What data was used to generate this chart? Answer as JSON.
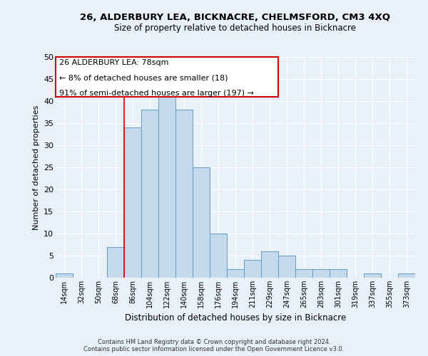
{
  "title": "26, ALDERBURY LEA, BICKNACRE, CHELMSFORD, CM3 4XQ",
  "subtitle": "Size of property relative to detached houses in Bicknacre",
  "xlabel": "Distribution of detached houses by size in Bicknacre",
  "ylabel": "Number of detached properties",
  "categories": [
    "14sqm",
    "32sqm",
    "50sqm",
    "68sqm",
    "86sqm",
    "104sqm",
    "122sqm",
    "140sqm",
    "158sqm",
    "176sqm",
    "194sqm",
    "211sqm",
    "229sqm",
    "247sqm",
    "265sqm",
    "283sqm",
    "301sqm",
    "319sqm",
    "337sqm",
    "355sqm",
    "373sqm"
  ],
  "values": [
    1,
    0,
    0,
    7,
    34,
    38,
    41,
    38,
    25,
    10,
    2,
    4,
    6,
    5,
    2,
    2,
    2,
    0,
    1,
    0,
    1
  ],
  "bar_color": "#c5d9ec",
  "bar_edge_color": "#6699bb",
  "property_line_index": 4,
  "property_line_color": "#cc0000",
  "annotation_line1": "26 ALDERBURY LEA: 78sqm",
  "annotation_line2": "← 8% of detached houses are smaller (18)",
  "annotation_line3": "91% of semi-detached houses are larger (197) →",
  "annotation_box_color": "#cc0000",
  "background_color": "#e8f0f8",
  "plot_bg_color": "#e8f0f8",
  "footer_line1": "Contains HM Land Registry data © Crown copyright and database right 2024.",
  "footer_line2": "Contains public sector information licensed under the Open Government Licence v3.0.",
  "ylim": [
    0,
    50
  ],
  "yticks": [
    0,
    5,
    10,
    15,
    20,
    25,
    30,
    35,
    40,
    45,
    50
  ]
}
